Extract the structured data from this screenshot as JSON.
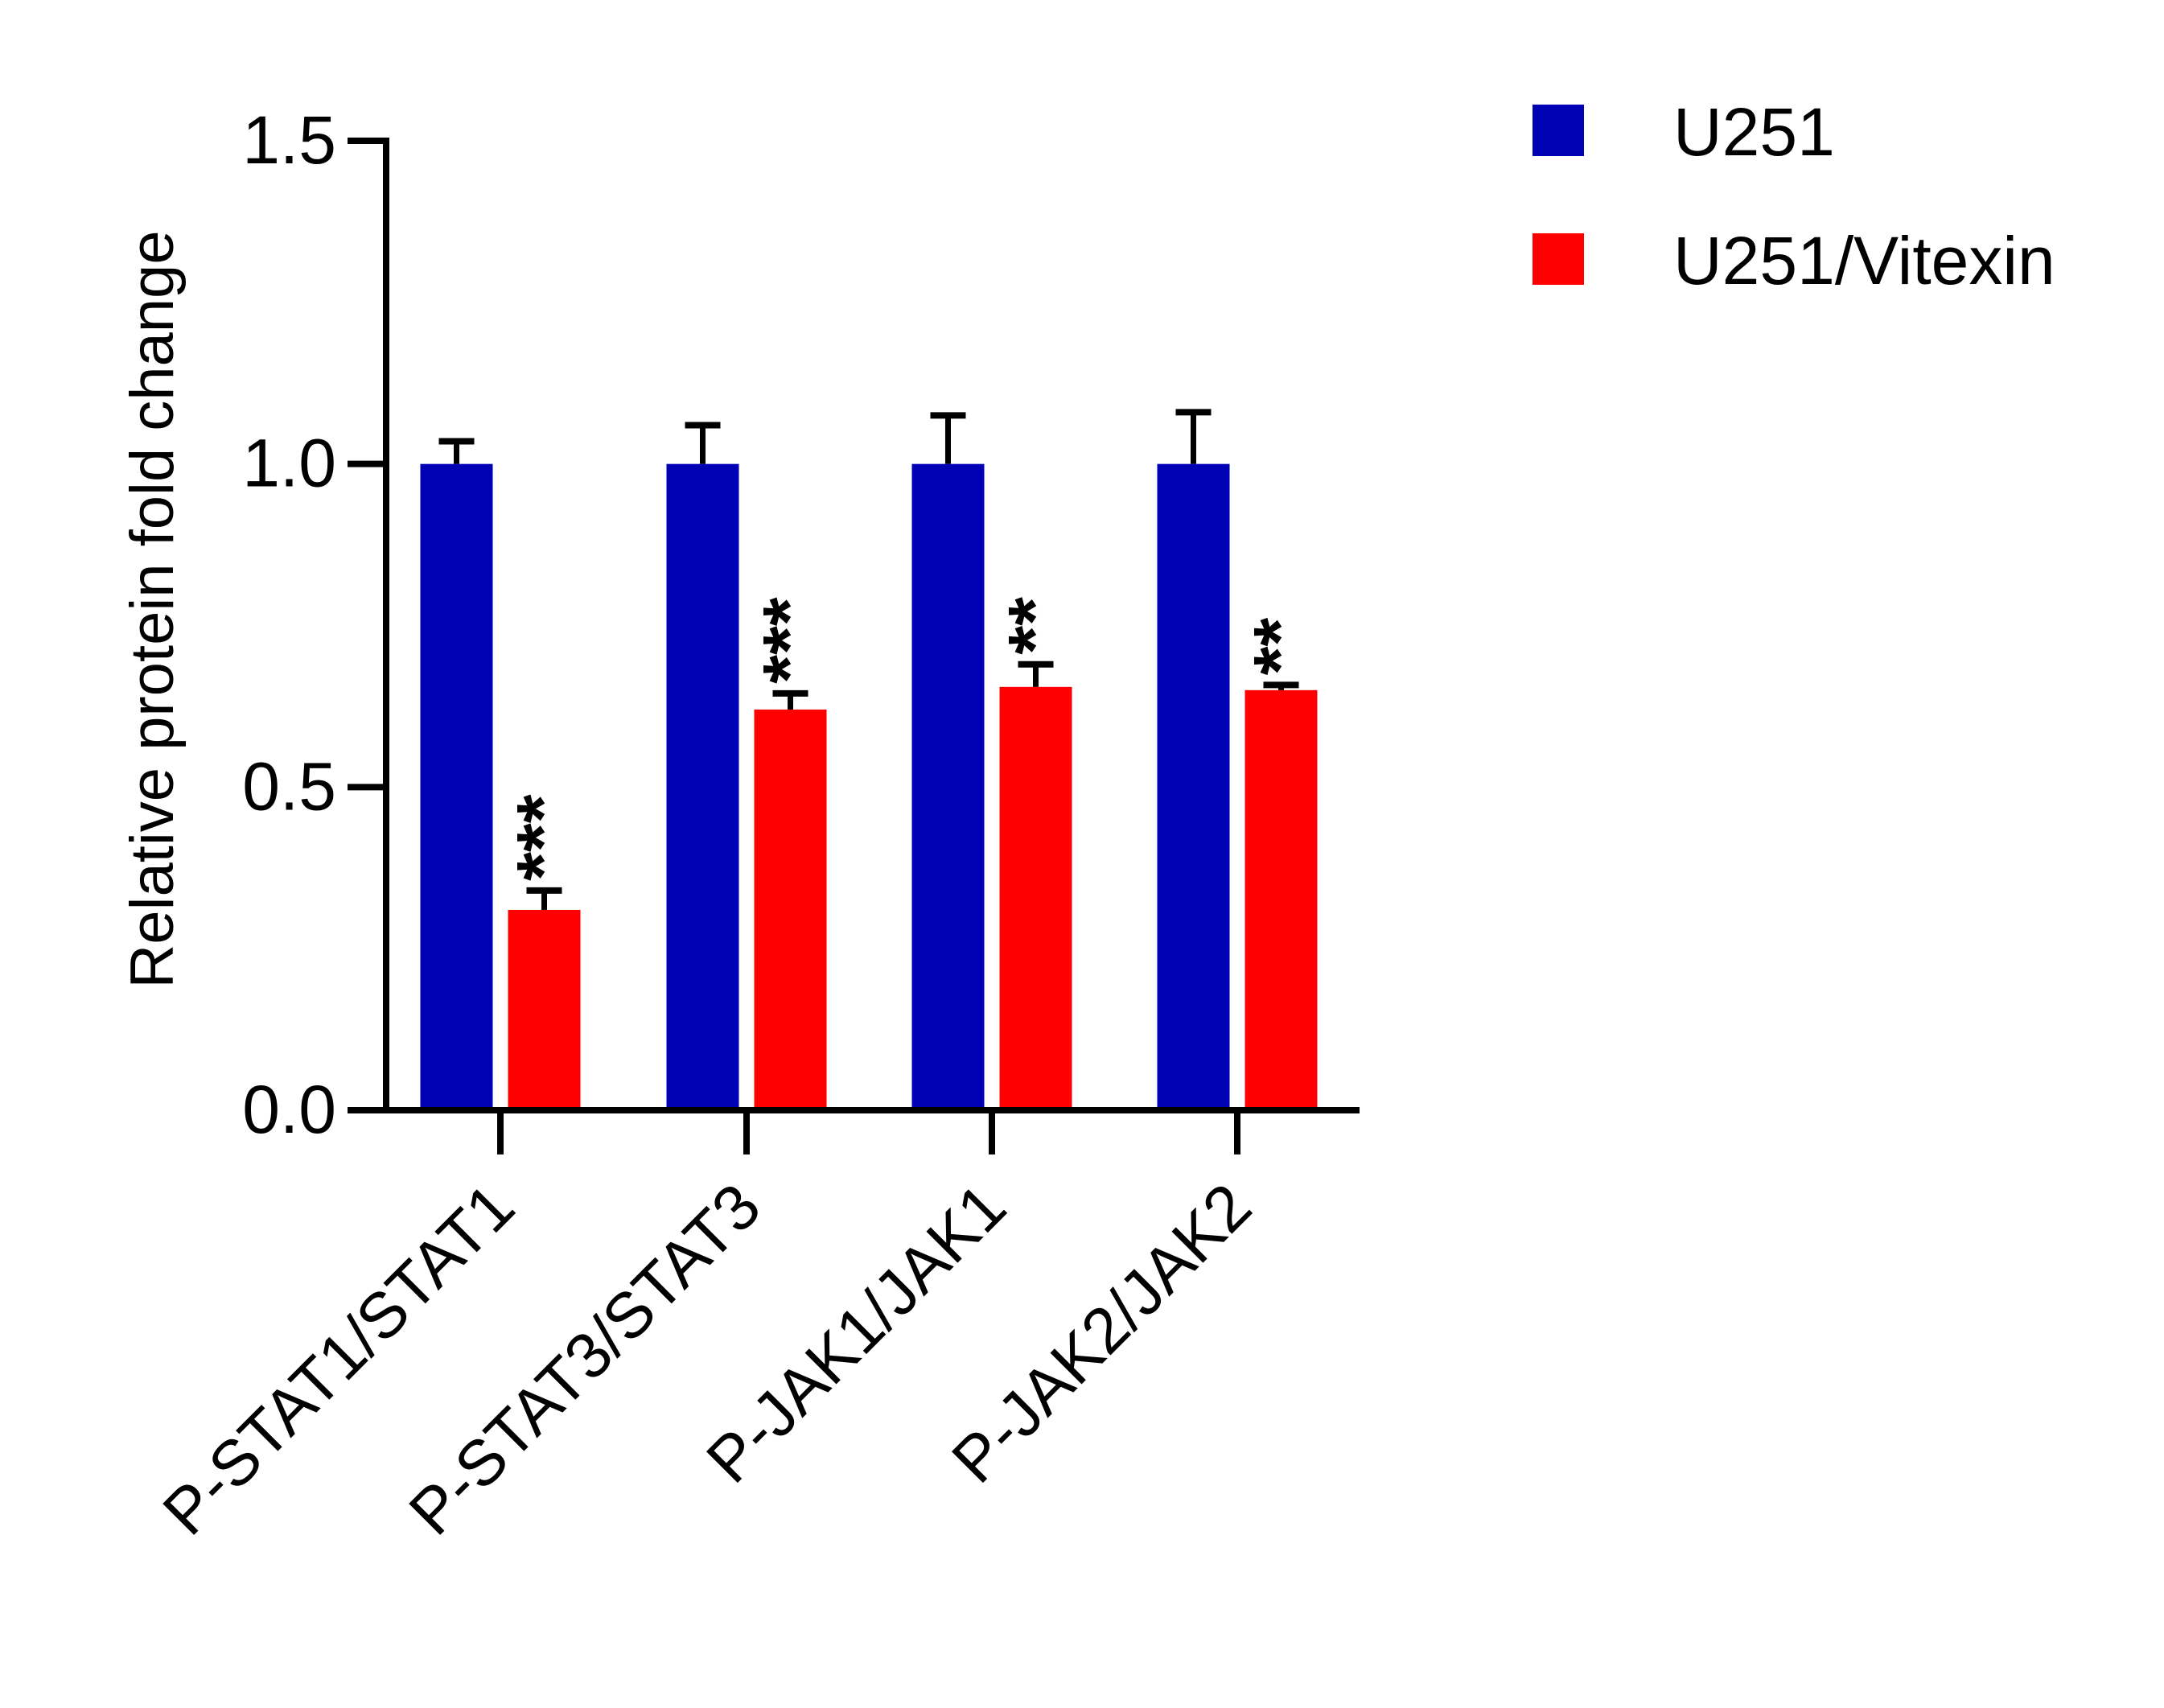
{
  "chart_data": {
    "type": "bar",
    "title": "",
    "xlabel": "",
    "ylabel": "Relative protein fold change",
    "ylim": [
      0,
      1.5
    ],
    "yticks": [
      0.0,
      0.5,
      1.0,
      1.5
    ],
    "ytick_labels": [
      "0.0",
      "0.5",
      "1.0",
      "1.5"
    ],
    "categories": [
      "P-STAT1/STAT1",
      "P-STAT3/STAT3",
      "P-JAK1/JAK1",
      "P-JAK2/JAK2"
    ],
    "series": [
      {
        "name": "U251",
        "color": "#0000b4",
        "values": [
          1.0,
          1.0,
          1.0,
          1.0
        ],
        "error": [
          0.035,
          0.06,
          0.075,
          0.08
        ]
      },
      {
        "name": "U251/Vitexin",
        "color": "#ff0000",
        "values": [
          0.31,
          0.62,
          0.655,
          0.65
        ],
        "error": [
          0.03,
          0.025,
          0.035,
          0.008
        ],
        "significance": [
          "***",
          "***",
          "**",
          "**"
        ]
      }
    ],
    "grid": false,
    "legend_position": "top-right"
  }
}
